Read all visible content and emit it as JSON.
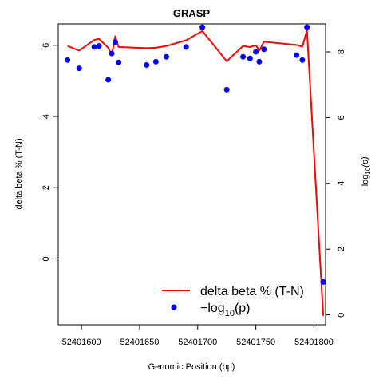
{
  "chart_data": {
    "type": "line",
    "title": "GRASP",
    "xlabel": "Genomic Position (bp)",
    "ylabel": "delta beta % (T-N)",
    "y2label_prefix": "−log",
    "y2label_sub": "10",
    "y2label_var": "(p)",
    "xlim": [
      52401580,
      52401810
    ],
    "ylim": [
      -1.85,
      6.6
    ],
    "y2lim": [
      -0.3,
      8.85
    ],
    "x_ticks": [
      52401600,
      52401650,
      52401700,
      52401750,
      52401800
    ],
    "x_tick_labels": [
      "52401600",
      "52401650",
      "52401700",
      "52401750",
      "52401800"
    ],
    "y_ticks": [
      0,
      2,
      4,
      6
    ],
    "y_tick_labels": [
      "0",
      "2",
      "4",
      "6"
    ],
    "y2_ticks": [
      0,
      2,
      4,
      6,
      8
    ],
    "y2_tick_labels": [
      "0",
      "2",
      "4",
      "6",
      "8"
    ],
    "grid": false,
    "legend_position": "bottom-right",
    "series": [
      {
        "name": "delta beta % (T-N)",
        "color": "#ff0000",
        "axis": "left",
        "kind": "line",
        "x": [
          52401588,
          52401598,
          52401611,
          52401615,
          52401623,
          52401626,
          52401629,
          52401632,
          52401656,
          52401664,
          52401673,
          52401690,
          52401704,
          52401725,
          52401739,
          52401745,
          52401750,
          52401753,
          52401757,
          52401785,
          52401790,
          52401794,
          52401808
        ],
        "values": [
          5.98,
          5.85,
          6.15,
          6.18,
          5.93,
          5.72,
          6.25,
          5.95,
          5.92,
          5.93,
          5.98,
          6.14,
          6.4,
          5.55,
          5.98,
          5.95,
          6.0,
          5.85,
          6.1,
          6.01,
          5.96,
          6.42,
          -1.6
        ]
      },
      {
        "name": "−log10(p)",
        "color": "#0000ff",
        "axis": "right",
        "kind": "scatter",
        "x": [
          52401588,
          52401598,
          52401611,
          52401615,
          52401623,
          52401626,
          52401629,
          52401632,
          52401656,
          52401664,
          52401673,
          52401690,
          52401704,
          52401725,
          52401739,
          52401745,
          52401750,
          52401753,
          52401757,
          52401785,
          52401790,
          52401794,
          52401808
        ],
        "values": [
          7.75,
          7.5,
          8.15,
          8.18,
          7.15,
          7.95,
          8.3,
          7.68,
          7.6,
          7.7,
          7.85,
          8.15,
          8.75,
          6.85,
          7.85,
          7.8,
          8.0,
          7.7,
          8.08,
          7.9,
          7.75,
          8.75,
          1.0
        ]
      }
    ],
    "legend": {
      "line_label": "delta beta % (T-N)",
      "point_label_prefix": "−log",
      "point_label_sub": "10",
      "point_label_var": "(p)"
    }
  }
}
